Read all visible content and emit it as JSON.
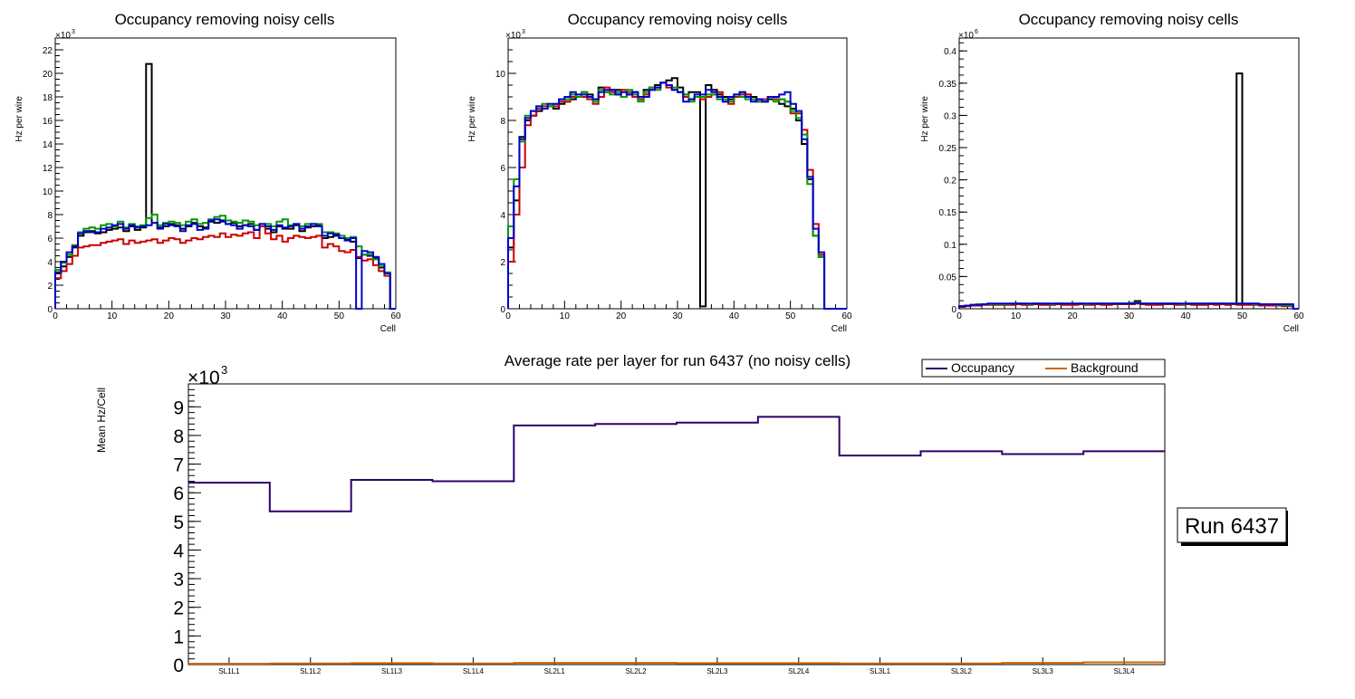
{
  "chart_data": [
    {
      "type": "line",
      "title": "Occupancy removing noisy cells",
      "xlabel": "Cell",
      "ylabel": "Hz per wire",
      "exponent": "3",
      "xlim": [
        0,
        60
      ],
      "ylim": [
        0,
        23
      ],
      "xticks": [
        "0",
        "10",
        "20",
        "30",
        "40",
        "50",
        "60"
      ],
      "yticks": [
        "0",
        "2",
        "4",
        "6",
        "8",
        "10",
        "12",
        "14",
        "16",
        "18",
        "20",
        "22"
      ],
      "series": [
        {
          "name": "black",
          "color": "#000000",
          "values": [
            3.0,
            3.6,
            4.4,
            5.2,
            6.2,
            6.5,
            6.6,
            6.4,
            6.5,
            6.7,
            6.8,
            6.9,
            6.6,
            7.0,
            6.7,
            6.9,
            20.8,
            7.3,
            6.9,
            7.0,
            7.2,
            7.1,
            6.8,
            7.0,
            7.3,
            7.0,
            6.9,
            7.4,
            7.3,
            7.5,
            7.2,
            7.3,
            7.0,
            7.1,
            7.2,
            6.7,
            7.0,
            6.8,
            6.5,
            7.0,
            6.8,
            6.8,
            7.1,
            6.6,
            6.9,
            7.0,
            7.1,
            6.0,
            6.1,
            6.2,
            6.0,
            5.9,
            5.7,
            4.3,
            4.6,
            4.5,
            4.3,
            3.5,
            3.0,
            0.0
          ]
        },
        {
          "name": "red",
          "color": "#cc0000",
          "values": [
            2.6,
            3.2,
            3.8,
            4.5,
            5.2,
            5.3,
            5.4,
            5.4,
            5.6,
            5.7,
            5.8,
            5.9,
            5.5,
            5.8,
            5.6,
            5.7,
            5.8,
            5.9,
            5.6,
            5.8,
            6.0,
            5.9,
            5.6,
            5.8,
            6.0,
            5.9,
            6.1,
            6.2,
            6.1,
            6.4,
            6.1,
            6.3,
            6.2,
            6.4,
            6.5,
            6.0,
            7.0,
            6.4,
            5.9,
            6.2,
            5.7,
            6.0,
            6.2,
            6.1,
            6.0,
            6.1,
            6.2,
            5.2,
            5.5,
            5.3,
            4.9,
            4.8,
            5.0,
            4.4,
            4.1,
            4.2,
            3.7,
            3.2,
            2.8,
            0.0
          ]
        },
        {
          "name": "green",
          "color": "#009900",
          "values": [
            3.3,
            3.9,
            4.6,
            5.4,
            6.5,
            6.8,
            6.9,
            6.8,
            7.1,
            7.2,
            7.0,
            7.4,
            6.9,
            7.2,
            7.0,
            7.1,
            7.7,
            8.0,
            7.1,
            7.3,
            7.4,
            7.3,
            7.1,
            7.4,
            7.6,
            7.2,
            7.3,
            7.6,
            7.8,
            7.9,
            7.5,
            7.4,
            7.3,
            7.5,
            7.4,
            7.1,
            7.2,
            7.2,
            7.0,
            7.4,
            7.6,
            7.1,
            7.2,
            7.0,
            7.2,
            7.2,
            7.2,
            6.5,
            6.5,
            6.4,
            6.2,
            6.0,
            6.1,
            5.3,
            4.6,
            4.6,
            4.2,
            3.6,
            3.1,
            0.0
          ]
        },
        {
          "name": "blue",
          "color": "#0000cc",
          "values": [
            3.1,
            4.0,
            4.8,
            5.3,
            6.4,
            6.6,
            6.5,
            6.5,
            6.8,
            6.9,
            7.1,
            7.2,
            6.8,
            7.1,
            6.9,
            7.0,
            7.1,
            7.3,
            6.8,
            7.2,
            7.1,
            7.0,
            6.6,
            7.1,
            7.2,
            6.7,
            6.8,
            7.5,
            7.6,
            7.4,
            7.2,
            7.1,
            6.8,
            7.1,
            7.0,
            6.7,
            7.2,
            7.0,
            6.7,
            7.1,
            6.9,
            7.0,
            7.2,
            6.8,
            7.0,
            7.2,
            7.0,
            6.2,
            6.4,
            6.3,
            6.0,
            5.8,
            6.0,
            0.0,
            4.9,
            4.8,
            4.4,
            3.8,
            3.0,
            0.0
          ]
        }
      ]
    },
    {
      "type": "line",
      "title": "Occupancy removing noisy cells",
      "xlabel": "Cell",
      "ylabel": "Hz per wire",
      "exponent": "3",
      "xlim": [
        0,
        60
      ],
      "ylim": [
        0,
        11.5
      ],
      "xticks": [
        "0",
        "10",
        "20",
        "30",
        "40",
        "50",
        "60"
      ],
      "yticks": [
        "0",
        "2",
        "4",
        "6",
        "8",
        "10"
      ],
      "series": [
        {
          "name": "black",
          "color": "#000000",
          "values": [
            2.6,
            4.6,
            7.3,
            8.0,
            8.2,
            8.4,
            8.5,
            8.6,
            8.5,
            8.7,
            8.8,
            8.9,
            9.0,
            9.2,
            9.1,
            8.9,
            9.4,
            9.2,
            9.3,
            9.3,
            9.0,
            9.1,
            9.2,
            8.9,
            9.3,
            9.4,
            9.5,
            9.6,
            9.7,
            9.8,
            9.4,
            9.1,
            9.2,
            9.2,
            0.1,
            9.5,
            9.3,
            9.1,
            9.0,
            8.9,
            9.0,
            9.2,
            9.1,
            9.0,
            8.9,
            8.8,
            8.9,
            8.9,
            8.7,
            8.6,
            8.5,
            8.0,
            7.0,
            5.5,
            3.1,
            2.2,
            0.0,
            0.0,
            0.0,
            0.0
          ]
        },
        {
          "name": "red",
          "color": "#cc0000",
          "values": [
            2.0,
            4.0,
            6.0,
            7.8,
            8.2,
            8.5,
            8.6,
            8.6,
            8.6,
            8.8,
            8.8,
            9.0,
            9.1,
            9.0,
            8.9,
            8.7,
            9.0,
            9.4,
            9.2,
            9.1,
            9.3,
            9.2,
            9.0,
            8.9,
            9.1,
            9.3,
            9.4,
            9.6,
            9.4,
            9.3,
            9.2,
            9.0,
            8.9,
            9.0,
            8.9,
            9.0,
            9.1,
            9.2,
            8.8,
            8.7,
            9.0,
            9.1,
            9.1,
            8.9,
            8.8,
            8.9,
            9.0,
            8.9,
            8.9,
            8.8,
            8.3,
            8.3,
            7.6,
            5.9,
            3.6,
            2.3,
            0.0,
            0.0,
            0.0,
            0.0
          ]
        },
        {
          "name": "green",
          "color": "#009900",
          "values": [
            3.5,
            5.5,
            7.1,
            8.2,
            8.4,
            8.6,
            8.7,
            8.6,
            8.7,
            8.9,
            8.9,
            9.1,
            9.0,
            9.2,
            9.0,
            8.8,
            9.3,
            9.2,
            9.1,
            9.2,
            9.0,
            9.3,
            9.1,
            8.8,
            9.2,
            9.4,
            9.3,
            9.6,
            9.5,
            9.4,
            9.2,
            9.1,
            8.8,
            9.0,
            9.0,
            9.1,
            9.1,
            8.9,
            8.9,
            8.8,
            9.1,
            9.0,
            8.9,
            8.9,
            8.8,
            8.8,
            9.0,
            8.8,
            8.9,
            8.8,
            8.4,
            8.1,
            7.4,
            5.3,
            3.1,
            2.2,
            0.0,
            0.0,
            0.0,
            0.0
          ]
        },
        {
          "name": "blue",
          "color": "#0000cc",
          "values": [
            3.0,
            5.2,
            7.2,
            8.1,
            8.4,
            8.6,
            8.5,
            8.7,
            8.7,
            8.9,
            9.0,
            9.2,
            9.1,
            9.1,
            9.0,
            8.9,
            9.2,
            9.3,
            9.3,
            9.1,
            9.2,
            9.1,
            9.2,
            9.0,
            9.0,
            9.3,
            9.4,
            9.6,
            9.5,
            9.3,
            9.2,
            8.8,
            8.9,
            9.1,
            9.1,
            9.3,
            9.2,
            9.0,
            8.8,
            9.0,
            9.1,
            9.2,
            9.0,
            8.8,
            8.9,
            8.8,
            9.0,
            9.0,
            9.1,
            9.2,
            8.7,
            8.4,
            7.2,
            5.6,
            3.4,
            2.4,
            0.0,
            0.0,
            0.0,
            0.0
          ]
        }
      ]
    },
    {
      "type": "line",
      "title": "Occupancy removing noisy cells",
      "xlabel": "Cell",
      "ylabel": "Hz per wire",
      "exponent": "6",
      "xlim": [
        0,
        60
      ],
      "ylim": [
        0,
        0.42
      ],
      "xticks": [
        "0",
        "10",
        "20",
        "30",
        "40",
        "50",
        "60"
      ],
      "yticks": [
        "0",
        "0.05",
        "0.1",
        "0.15",
        "0.2",
        "0.25",
        "0.3",
        "0.35",
        "0.4"
      ],
      "series": [
        {
          "name": "black",
          "color": "#000000",
          "values": [
            0.003,
            0.005,
            0.006,
            0.006,
            0.007,
            0.007,
            0.007,
            0.007,
            0.007,
            0.007,
            0.008,
            0.007,
            0.007,
            0.008,
            0.007,
            0.007,
            0.007,
            0.008,
            0.007,
            0.007,
            0.007,
            0.008,
            0.007,
            0.007,
            0.008,
            0.007,
            0.007,
            0.008,
            0.008,
            0.008,
            0.009,
            0.012,
            0.008,
            0.007,
            0.007,
            0.007,
            0.008,
            0.008,
            0.007,
            0.007,
            0.008,
            0.007,
            0.007,
            0.007,
            0.008,
            0.007,
            0.008,
            0.007,
            0.008,
            0.365,
            0.007,
            0.007,
            0.007,
            0.006,
            0.006,
            0.006,
            0.006,
            0.005,
            0.005,
            0.0
          ]
        },
        {
          "name": "red",
          "color": "#cc0000",
          "values": [
            0.003,
            0.004,
            0.005,
            0.005,
            0.006,
            0.006,
            0.006,
            0.006,
            0.006,
            0.006,
            0.007,
            0.006,
            0.006,
            0.007,
            0.006,
            0.006,
            0.006,
            0.007,
            0.006,
            0.006,
            0.006,
            0.007,
            0.006,
            0.006,
            0.007,
            0.006,
            0.006,
            0.007,
            0.007,
            0.007,
            0.007,
            0.008,
            0.007,
            0.006,
            0.006,
            0.006,
            0.007,
            0.007,
            0.006,
            0.006,
            0.007,
            0.006,
            0.006,
            0.006,
            0.007,
            0.006,
            0.007,
            0.006,
            0.007,
            0.006,
            0.006,
            0.006,
            0.006,
            0.005,
            0.005,
            0.005,
            0.005,
            0.004,
            0.004,
            0.0
          ]
        },
        {
          "name": "green",
          "color": "#009900",
          "values": [
            0.004,
            0.005,
            0.006,
            0.007,
            0.007,
            0.007,
            0.007,
            0.007,
            0.007,
            0.008,
            0.008,
            0.008,
            0.007,
            0.008,
            0.008,
            0.008,
            0.007,
            0.008,
            0.008,
            0.008,
            0.008,
            0.008,
            0.007,
            0.008,
            0.008,
            0.008,
            0.008,
            0.008,
            0.008,
            0.008,
            0.009,
            0.01,
            0.008,
            0.008,
            0.008,
            0.008,
            0.008,
            0.008,
            0.008,
            0.007,
            0.008,
            0.008,
            0.008,
            0.008,
            0.008,
            0.008,
            0.008,
            0.008,
            0.008,
            0.008,
            0.008,
            0.008,
            0.007,
            0.007,
            0.007,
            0.007,
            0.006,
            0.006,
            0.005,
            0.0
          ]
        },
        {
          "name": "blue",
          "color": "#0000cc",
          "values": [
            0.004,
            0.005,
            0.006,
            0.006,
            0.007,
            0.008,
            0.008,
            0.008,
            0.008,
            0.008,
            0.008,
            0.008,
            0.008,
            0.008,
            0.008,
            0.008,
            0.008,
            0.008,
            0.008,
            0.008,
            0.008,
            0.008,
            0.008,
            0.008,
            0.008,
            0.008,
            0.008,
            0.008,
            0.008,
            0.008,
            0.008,
            0.009,
            0.008,
            0.008,
            0.008,
            0.008,
            0.008,
            0.008,
            0.008,
            0.008,
            0.008,
            0.008,
            0.008,
            0.008,
            0.008,
            0.008,
            0.008,
            0.008,
            0.008,
            0.008,
            0.008,
            0.008,
            0.008,
            0.007,
            0.007,
            0.007,
            0.007,
            0.007,
            0.007,
            0.0
          ]
        }
      ]
    },
    {
      "type": "line",
      "title": "Average rate per layer for run 6437 (no noisy cells)",
      "xlabel": "",
      "ylabel": "Mean Hz/Cell",
      "exponent": "3",
      "ylim": [
        0,
        9.8
      ],
      "categories": [
        "SL1L1",
        "SL1L2",
        "SL1L3",
        "SL1L4",
        "SL2L1",
        "SL2L2",
        "SL2L3",
        "SL2L4",
        "SL3L1",
        "SL3L2",
        "SL3L3",
        "SL3L4"
      ],
      "yticks": [
        "0",
        "1",
        "2",
        "3",
        "4",
        "5",
        "6",
        "7",
        "8",
        "9"
      ],
      "series": [
        {
          "name": "Occupancy",
          "color": "#2b006b",
          "values": [
            6.35,
            5.35,
            6.45,
            6.4,
            8.35,
            8.4,
            8.45,
            8.65,
            7.3,
            7.45,
            7.35,
            7.45
          ]
        },
        {
          "name": "Background",
          "color": "#cc6600",
          "values": [
            0.03,
            0.04,
            0.05,
            0.04,
            0.06,
            0.06,
            0.05,
            0.05,
            0.04,
            0.04,
            0.06,
            0.08
          ]
        }
      ],
      "legend_position": "top-right"
    }
  ],
  "run_label": "Run 6437"
}
